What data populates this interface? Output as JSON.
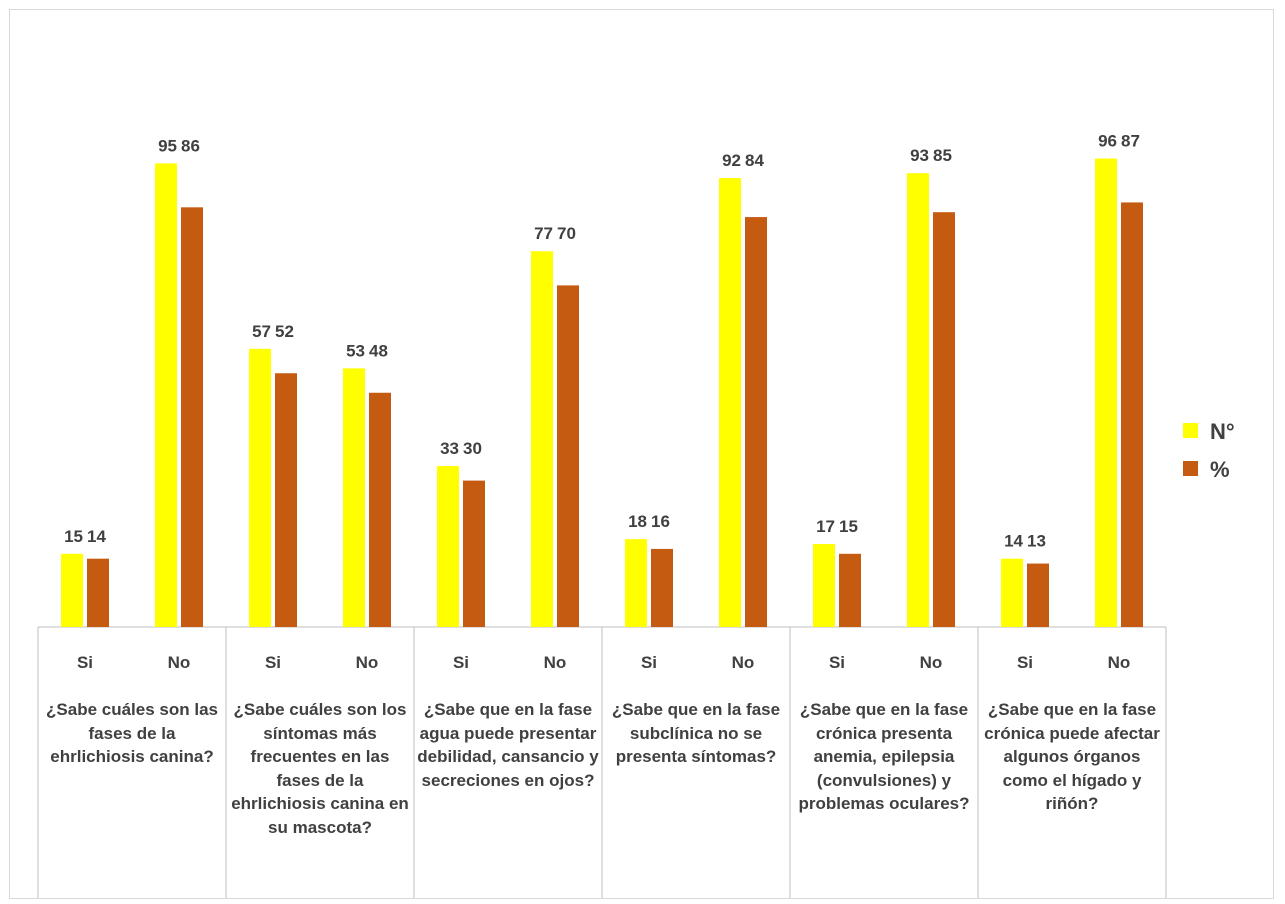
{
  "chart_data": {
    "type": "bar",
    "groups": [
      {
        "question": "¿Sabe cuáles son las fases de la ehrlichiosis canina?",
        "subcategories": [
          "Si",
          "No"
        ]
      },
      {
        "question": "¿Sabe cuáles son los síntomas más frecuentes en las fases de la ehrlichiosis canina en su mascota?",
        "subcategories": [
          "Si",
          "No"
        ]
      },
      {
        "question": "¿Sabe que en la fase agua puede presentar debilidad, cansancio y secreciones en ojos?",
        "subcategories": [
          "Si",
          "No"
        ]
      },
      {
        "question": "¿Sabe que en la fase subclínica no se presenta síntomas?",
        "subcategories": [
          "Si",
          "No"
        ]
      },
      {
        "question": "¿Sabe que en la fase crónica presenta anemia, epilepsia (convulsiones) y problemas oculares?",
        "subcategories": [
          "Si",
          "No"
        ]
      },
      {
        "question": "¿Sabe que en la fase crónica puede afectar algunos órganos como el hígado y riñón?",
        "subcategories": [
          "Si",
          "No"
        ]
      }
    ],
    "series": [
      {
        "name": "N°",
        "color": "#ffff00",
        "values": [
          15,
          95,
          57,
          53,
          33,
          77,
          18,
          92,
          17,
          93,
          14,
          96
        ]
      },
      {
        "name": "%",
        "color": "#c55a11",
        "values": [
          14,
          86,
          52,
          48,
          30,
          70,
          16,
          84,
          15,
          85,
          13,
          87
        ]
      }
    ],
    "legend_position": "right",
    "grid": false,
    "ylim": [
      0,
      115
    ]
  }
}
